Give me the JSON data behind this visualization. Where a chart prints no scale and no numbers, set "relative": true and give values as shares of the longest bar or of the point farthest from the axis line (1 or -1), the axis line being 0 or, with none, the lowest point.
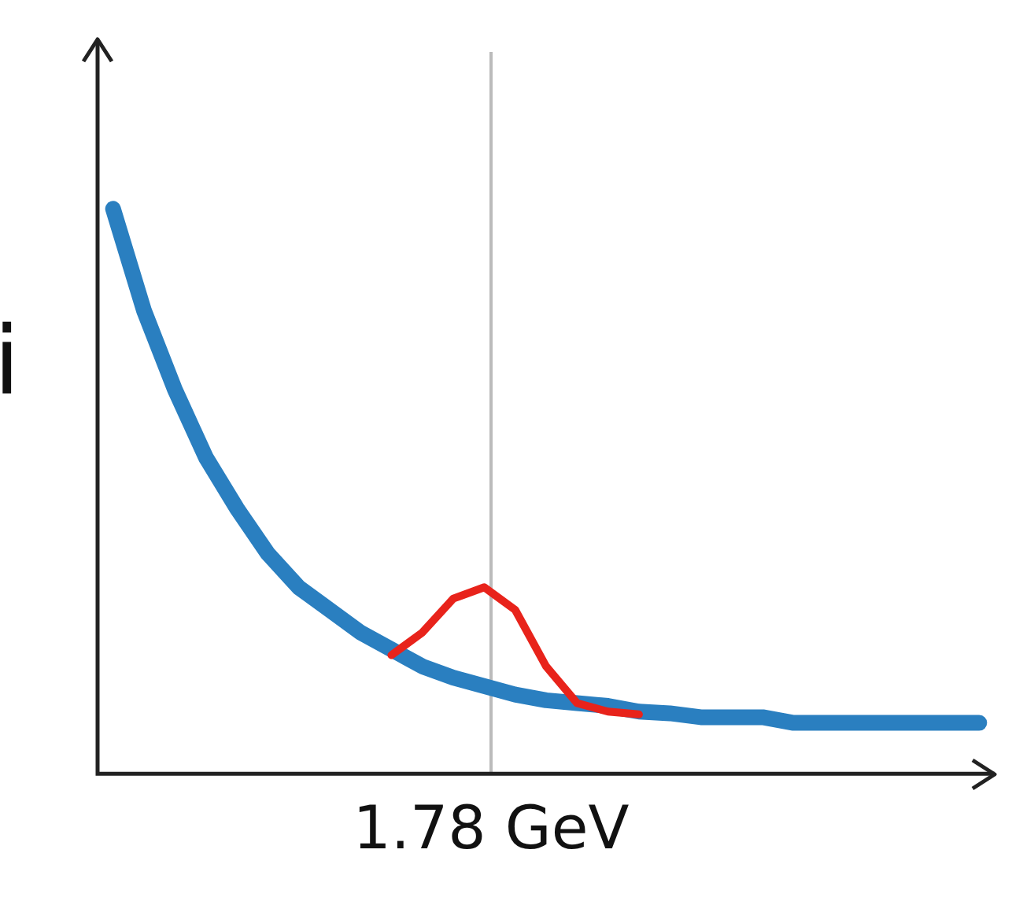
{
  "chart_data": {
    "type": "line",
    "relative": true,
    "categories": [
      null,
      null,
      null,
      null,
      null,
      null,
      null,
      null,
      null,
      null,
      null,
      null,
      null,
      null,
      null,
      null,
      null,
      null,
      null,
      null,
      null,
      null,
      null,
      null,
      null,
      null,
      null,
      null,
      null
    ],
    "series": [
      {
        "color": "#2a7fc0",
        "values": [
          1.0,
          0.82,
          0.68,
          0.56,
          0.47,
          0.39,
          0.33,
          0.29,
          0.25,
          0.22,
          0.19,
          0.17,
          0.155,
          0.14,
          0.13,
          0.125,
          0.12,
          0.11,
          0.107,
          0.1,
          0.1,
          0.1,
          0.09,
          0.09,
          0.09,
          0.09,
          0.09,
          0.09,
          0.09
        ]
      },
      {
        "color": "#e8231b",
        "values": [
          null,
          null,
          null,
          null,
          null,
          null,
          null,
          null,
          null,
          0.21,
          0.25,
          0.31,
          0.33,
          0.29,
          0.19,
          0.125,
          0.11,
          0.105,
          null,
          null,
          null,
          null,
          null,
          null,
          null,
          null,
          null,
          null,
          null
        ]
      }
    ],
    "annotations": [
      "i",
      "1.78 GeV"
    ]
  }
}
